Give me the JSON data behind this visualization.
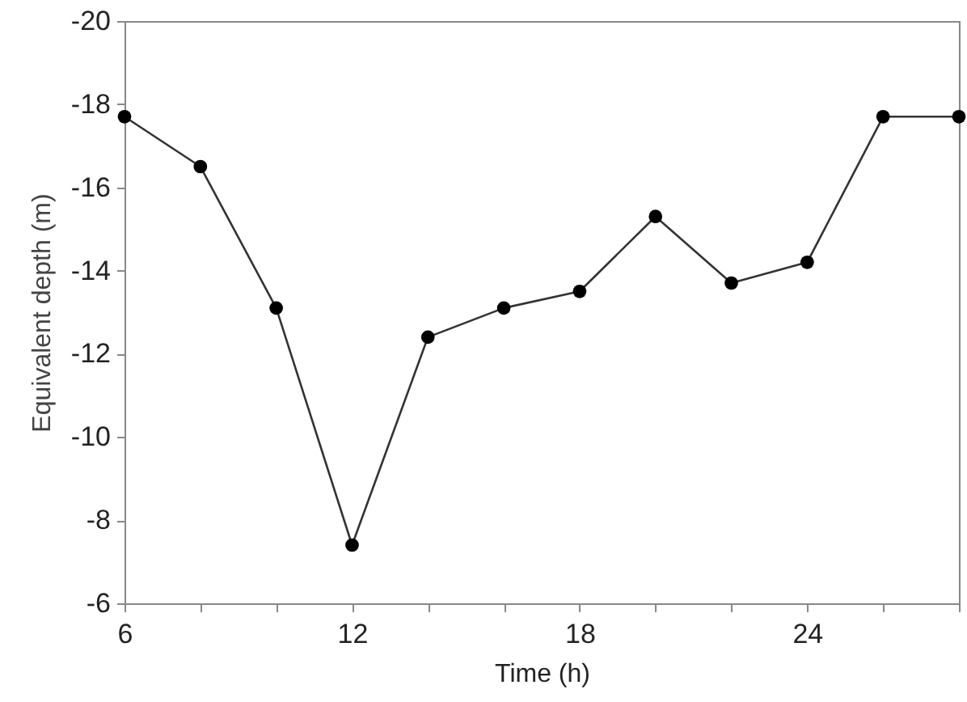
{
  "chart_data": {
    "type": "line",
    "xlabel": "Time (h)",
    "ylabel": "Equivalent depth (m)",
    "x": [
      6,
      8,
      10,
      12,
      14,
      16,
      18,
      20,
      22,
      24,
      26,
      28
    ],
    "series": [
      {
        "color": "#000000",
        "values": [
          -17.7,
          -16.5,
          -13.1,
          -7.4,
          -12.4,
          -13.1,
          -13.5,
          -15.3,
          -13.7,
          -14.2,
          -17.7,
          -17.7
        ]
      }
    ],
    "xlim": [
      6,
      28
    ],
    "xticks": [
      6,
      {
        "value": 8,
        "label": null
      },
      {
        "value": 10,
        "label": null
      },
      12,
      {
        "value": 14,
        "label": null
      },
      {
        "value": 16,
        "label": null
      },
      18,
      {
        "value": 20,
        "label": null
      },
      {
        "value": 22,
        "label": null
      },
      24,
      {
        "value": 26,
        "label": null
      },
      {
        "value": 28,
        "label": null
      }
    ],
    "ylim": [
      -6,
      -20
    ],
    "yticks": [
      -20,
      -18,
      -16,
      -14,
      -12,
      -10,
      -8,
      -6
    ],
    "grid": false,
    "marker": "circle",
    "line_style": "solid"
  }
}
